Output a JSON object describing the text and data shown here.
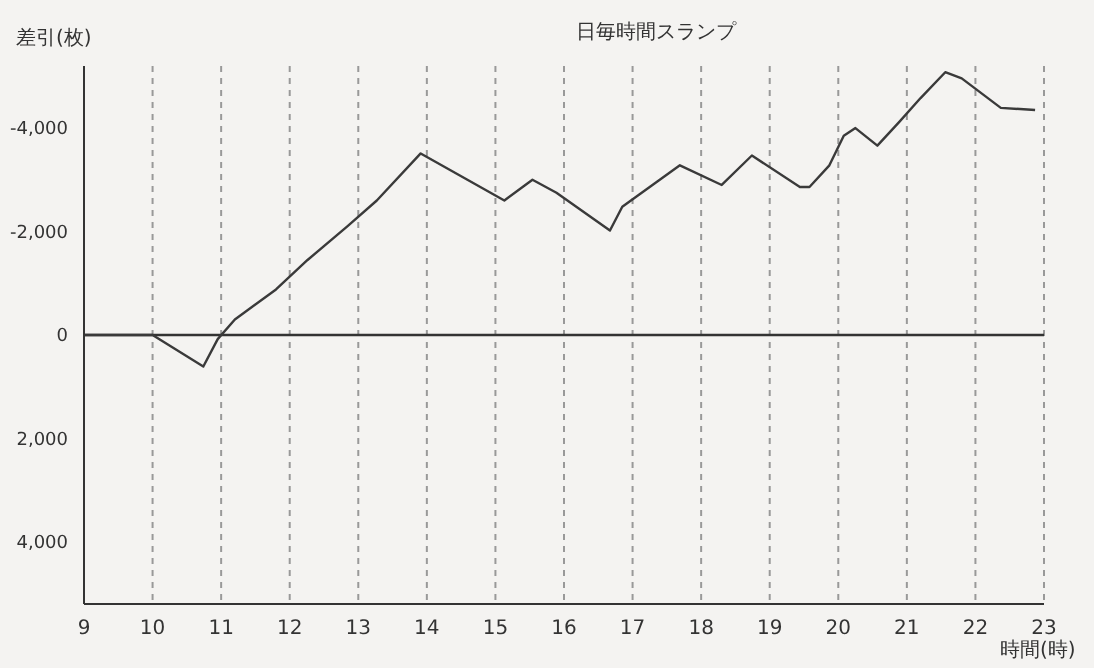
{
  "chart_data": {
    "type": "line",
    "title": "日毎時間スランプ",
    "ylabel": "差引(枚)",
    "xlabel": "時間(時)",
    "x": [
      9,
      10,
      10.74,
      10.95,
      11.2,
      11.8,
      12.26,
      12.84,
      13.27,
      13.91,
      15.13,
      15.54,
      15.89,
      16.67,
      16.85,
      17.69,
      18.3,
      18.74,
      19.44,
      19.58,
      19.87,
      20.08,
      20.25,
      20.57,
      20.89,
      21.2,
      21.56,
      21.8,
      22.37,
      22.87
    ],
    "series": [
      {
        "color": "#3a3a3a",
        "values": [
          0,
          0,
          610,
          80,
          -300,
          -880,
          -1450,
          -2100,
          -2600,
          -3510,
          -2600,
          -3000,
          -2750,
          -2020,
          -2480,
          -3280,
          -2900,
          -3470,
          -2860,
          -2860,
          -3280,
          -3850,
          -4000,
          -3660,
          -4120,
          -4580,
          -5080,
          -4960,
          -4390,
          -4350
        ]
      }
    ],
    "xlim": [
      9,
      23
    ],
    "xticks": [
      9,
      10,
      11,
      12,
      13,
      14,
      15,
      16,
      17,
      18,
      19,
      20,
      21,
      22,
      23
    ],
    "ylim": [
      5200,
      -5200
    ],
    "yticks": [
      {
        "value": 4000,
        "label": "4,000"
      },
      {
        "value": 2000,
        "label": "2,000"
      },
      {
        "value": 0,
        "label": "0"
      },
      {
        "value": -2000,
        "label": "-2,000"
      },
      {
        "value": -4000,
        "label": "-4,000"
      }
    ],
    "ref_lines": [
      {
        "axis": "y",
        "value": 0,
        "color": "#333333"
      }
    ],
    "grid": "x",
    "marker": "none",
    "line_style": "solid"
  }
}
